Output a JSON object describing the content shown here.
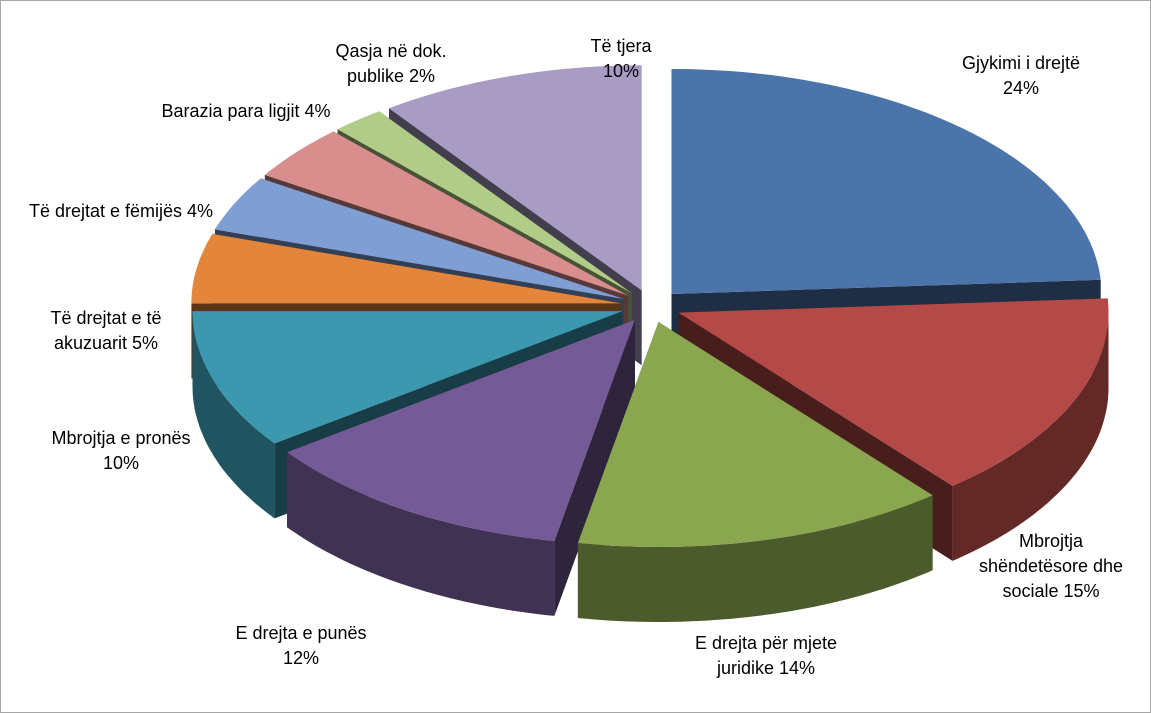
{
  "chart_data": {
    "type": "pie3d",
    "categories": [
      "Gjykimi i drejtë",
      "Mbrojtja shëndetësore dhe sociale",
      "E drejta për mjete juridike",
      "E drejta e punës",
      "Mbrojtja e pronës",
      "Të drejtat e të akuzuarit",
      "Të drejtat e fëmijës",
      "Barazia para ligjit",
      "Qasja në dok. publike",
      "Të tjera"
    ],
    "values": [
      24,
      15,
      14,
      12,
      10,
      5,
      4,
      4,
      2,
      10
    ],
    "value_labels": [
      "24%",
      "15%",
      "14%",
      "12%",
      "10%",
      "5%",
      "4%",
      "4%",
      "2%",
      "10%"
    ],
    "colors": [
      "#4a74aa",
      "#b44a47",
      "#8aa64e",
      "#745a96",
      "#3b98ae",
      "#e3853a",
      "#7f9ed4",
      "#d88e8d",
      "#b1cc86",
      "#a89bc4"
    ]
  }
}
